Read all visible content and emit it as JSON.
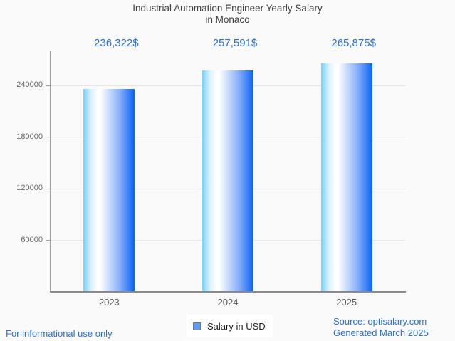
{
  "title": {
    "line1": "Industrial Automation Engineer Yearly Salary",
    "line2": "in Monaco"
  },
  "chart_data": {
    "type": "bar",
    "title": "Industrial Automation Engineer Yearly Salary in Monaco",
    "categories": [
      "2023",
      "2024",
      "2025"
    ],
    "values": [
      236322,
      257591,
      265875
    ],
    "value_labels": [
      "236,322$",
      "257,591$",
      "265,875$"
    ],
    "series": [
      {
        "name": "Salary in USD",
        "values": [
          236322,
          257591,
          265875
        ]
      }
    ],
    "xlabel": "",
    "ylabel": "",
    "ylim": [
      0,
      280000
    ],
    "yticks": [
      60000,
      120000,
      180000,
      240000
    ],
    "ytick_labels": [
      "60000",
      "120000",
      "180000",
      "240000"
    ],
    "grid": "horizontal",
    "legend_position": "bottom-center"
  },
  "legend": {
    "label": "Salary in USD",
    "marker_color": "#5f9bf0",
    "marker_border": "#757575"
  },
  "footer": {
    "left_note": "For informational use only",
    "source_line1": "Source: optisalary.com",
    "source_line2": "Generated March 2025"
  },
  "colors": {
    "background": "#fafafa",
    "accent_blue": "#2a6fdb",
    "title_text": "#404040",
    "tick_text": "#666666",
    "x_label_text": "#555555",
    "grid": "#e6e6e6",
    "axis": "#8a8a8a",
    "bar_gradient": [
      "#76d0fa",
      "#d9f2fe",
      "#ffffff",
      "#c2d8fd",
      "#8db1fa",
      "#3f83f7",
      "#0a63f5"
    ]
  }
}
